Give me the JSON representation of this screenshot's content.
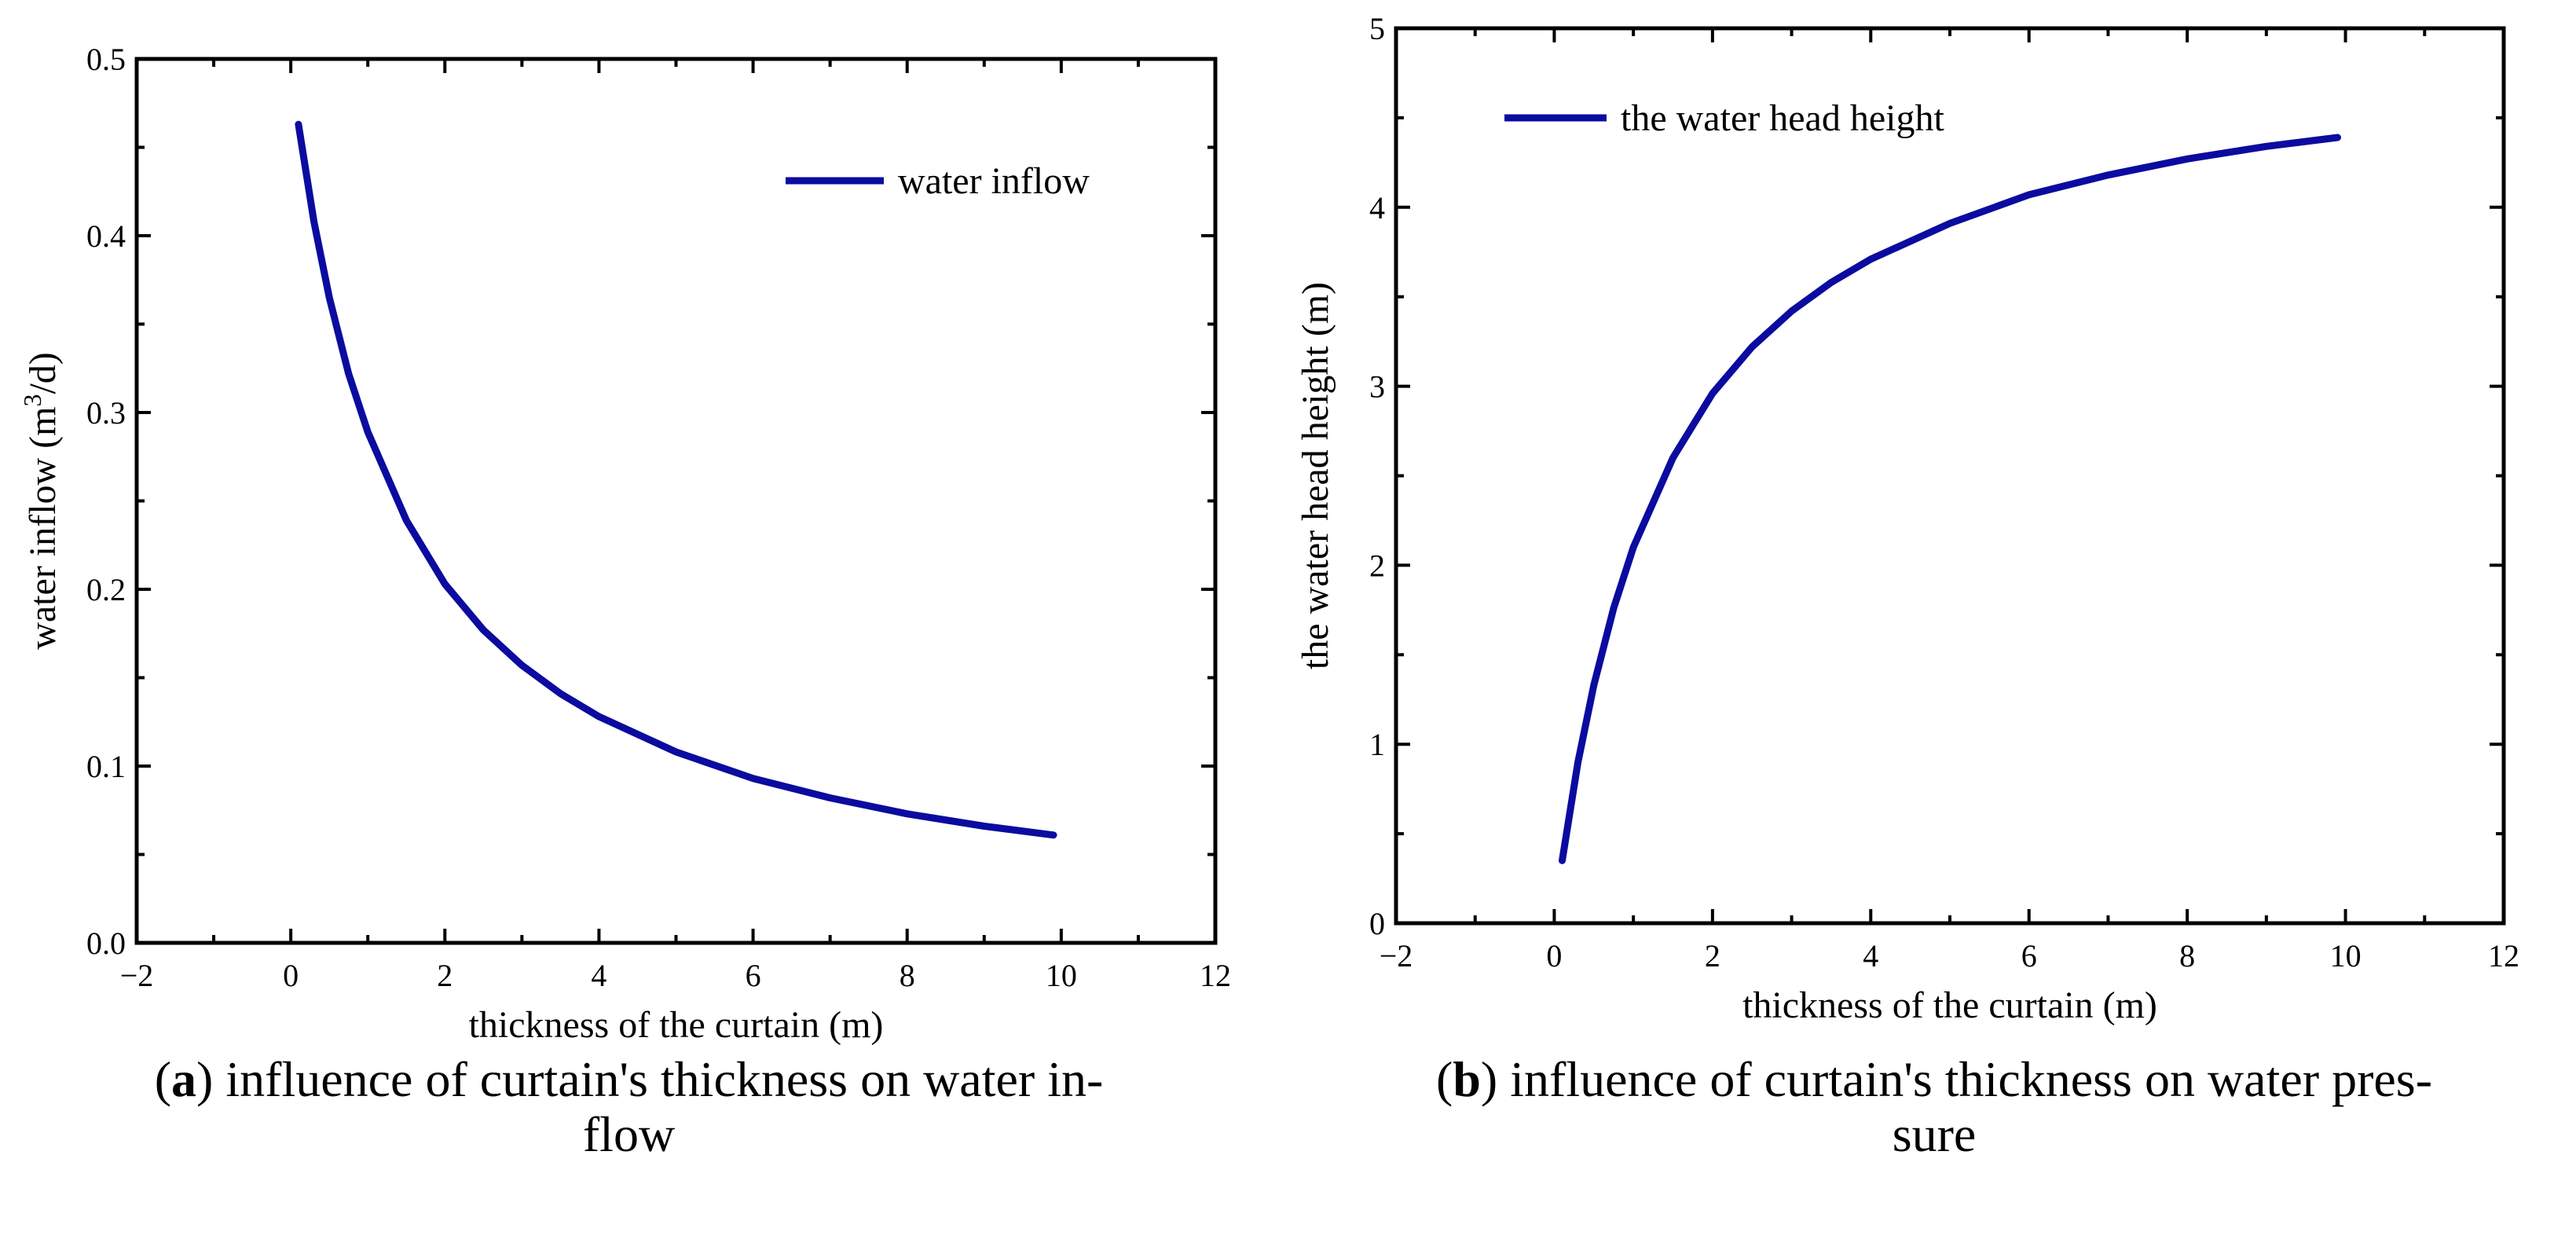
{
  "line_color": "#0b0ba0",
  "chart_data": [
    {
      "type": "line",
      "xlabel": "thickness of the curtain (m)",
      "ylabel_parts": [
        "water inflow (m",
        "3",
        "/d)"
      ],
      "xlim": [
        -2,
        12
      ],
      "ylim": [
        0.0,
        0.5
      ],
      "xticks": [
        -2,
        0,
        2,
        4,
        6,
        8,
        10,
        12
      ],
      "xtick_labels": [
        "−2",
        "0",
        "2",
        "4",
        "6",
        "8",
        "10",
        "12"
      ],
      "yticks": [
        0.0,
        0.1,
        0.2,
        0.3,
        0.4,
        0.5
      ],
      "ytick_labels": [
        "0.0",
        "0.1",
        "0.2",
        "0.3",
        "0.4",
        "0.5"
      ],
      "x_minor_step": 1,
      "y_minor_step": 0.05,
      "grid": false,
      "legend_position": "top-right",
      "series": [
        {
          "name": "water inflow",
          "x": [
            0.1,
            0.3,
            0.5,
            0.75,
            1,
            1.5,
            2,
            2.5,
            3,
            3.5,
            4,
            5,
            6,
            7,
            8,
            9,
            9.9
          ],
          "y": [
            0.463,
            0.408,
            0.365,
            0.322,
            0.289,
            0.239,
            0.203,
            0.177,
            0.157,
            0.141,
            0.128,
            0.108,
            0.093,
            0.082,
            0.073,
            0.066,
            0.061
          ]
        }
      ],
      "caption": {
        "label": "a",
        "lines": [
          "influence of curtain's thickness on water in-",
          "flow"
        ]
      }
    },
    {
      "type": "line",
      "xlabel": "thickness of the curtain (m)",
      "ylabel_parts": [
        "the water head height (m)"
      ],
      "xlim": [
        -2,
        12
      ],
      "ylim": [
        0,
        5
      ],
      "xticks": [
        -2,
        0,
        2,
        4,
        6,
        8,
        10,
        12
      ],
      "xtick_labels": [
        "−2",
        "0",
        "2",
        "4",
        "6",
        "8",
        "10",
        "12"
      ],
      "yticks": [
        0,
        1,
        2,
        3,
        4,
        5
      ],
      "ytick_labels": [
        "0",
        "1",
        "2",
        "3",
        "4",
        "5"
      ],
      "x_minor_step": 1,
      "y_minor_step": 0.5,
      "grid": false,
      "legend_position": "top-left",
      "series": [
        {
          "name": "the water head height",
          "x": [
            0.1,
            0.3,
            0.5,
            0.75,
            1,
            1.5,
            2,
            2.5,
            3,
            3.5,
            4,
            5,
            6,
            7,
            8,
            9,
            9.9
          ],
          "y": [
            0.35,
            0.9,
            1.33,
            1.76,
            2.1,
            2.6,
            2.96,
            3.22,
            3.42,
            3.58,
            3.71,
            3.91,
            4.07,
            4.18,
            4.27,
            4.34,
            4.39
          ]
        }
      ],
      "caption": {
        "label": "b",
        "lines": [
          "influence of curtain's thickness on water pres-",
          "sure"
        ]
      }
    }
  ]
}
